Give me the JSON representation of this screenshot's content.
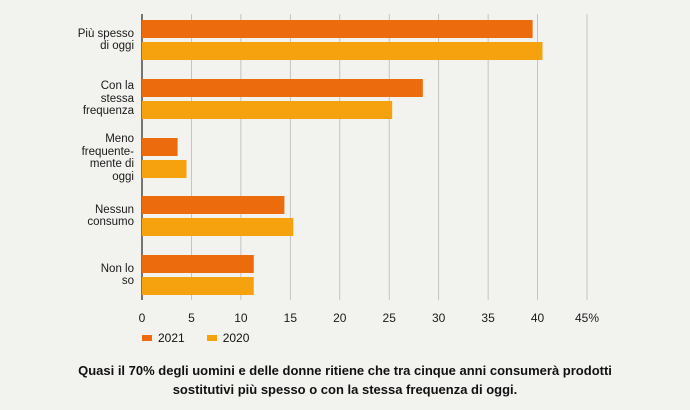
{
  "chart_data": {
    "type": "bar",
    "orientation": "horizontal",
    "categories": [
      "Più spesso\ndi oggi",
      "Con la\nstessa\nfrequenza",
      "Meno\nfrequente-\nmente di\noggi",
      "Nessun\nconsumo",
      "Non lo\nso"
    ],
    "series": [
      {
        "name": "2021",
        "color": "#ec6b0c",
        "values": [
          39.5,
          28.4,
          3.6,
          14.4,
          11.3
        ]
      },
      {
        "name": "2020",
        "color": "#f6a20f",
        "values": [
          40.5,
          25.3,
          4.5,
          15.3,
          11.3
        ]
      }
    ],
    "xlim": [
      0,
      45
    ],
    "xticks": [
      "0",
      "5",
      "10",
      "15",
      "20",
      "25",
      "30",
      "35",
      "40",
      "45%"
    ],
    "grid": true,
    "legend_position": "bottom-left"
  },
  "caption": {
    "line1": "Quasi il 70% degli uomini e delle donne ritiene che tra cinque anni consumerà prodotti",
    "line2": "sostitutivi più spesso o con la stessa frequenza di oggi."
  }
}
